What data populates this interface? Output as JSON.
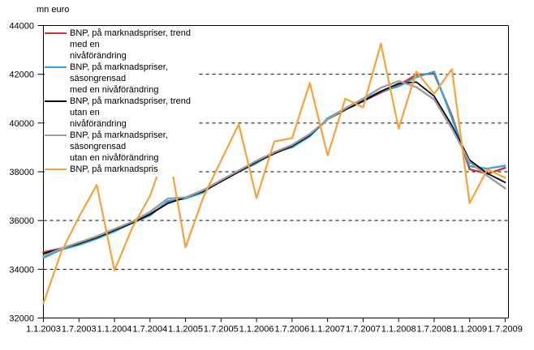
{
  "chart_data": {
    "type": "line",
    "ylabel": "mn euro",
    "ylim": [
      32000,
      44000
    ],
    "y_tick_labels": [
      "44000",
      "42000",
      "40000",
      "38000",
      "36000",
      "34000",
      "32000"
    ],
    "x_tick_labels": [
      "1.1.2003",
      "1.7.2003",
      "1.1.2004",
      "1.7.2004",
      "1.1.2005",
      "1.7.2005",
      "1.1.2006",
      "1.7.2006",
      "1.1.2007",
      "1.7.2007",
      "1.1.2008",
      "1.7.2008",
      "1.1.2009",
      "1.7.2009"
    ],
    "categories": [
      "2003Q1",
      "2003Q2",
      "2003Q3",
      "2003Q4",
      "2004Q1",
      "2004Q2",
      "2004Q3",
      "2004Q4",
      "2005Q1",
      "2005Q2",
      "2005Q3",
      "2005Q4",
      "2006Q1",
      "2006Q2",
      "2006Q3",
      "2006Q4",
      "2007Q1",
      "2007Q2",
      "2007Q3",
      "2007Q4",
      "2008Q1",
      "2008Q2",
      "2008Q3",
      "2008Q4",
      "2009Q1",
      "2009Q2",
      "2009Q3"
    ],
    "grid": "horizontal dashed lines every 2000, solid plot box border",
    "legend_position": "top-left inside plot, white background",
    "series": [
      {
        "name": "BNP, på marknadspriser, trend med en nivåförändring",
        "color": "#cd3333",
        "line_width": 2.4,
        "values": [
          34700,
          34850,
          35050,
          35300,
          35600,
          35900,
          36250,
          36750,
          36950,
          37200,
          37600,
          38000,
          38400,
          38750,
          39050,
          39500,
          40150,
          40550,
          40900,
          41250,
          41550,
          41980,
          42030,
          40300,
          38100,
          37920,
          38160
        ]
      },
      {
        "name": "BNP, på marknadspriser, säsongrensad med en nivåförändring",
        "color": "#2ba6de",
        "line_width": 2.2,
        "values": [
          34470,
          34800,
          35000,
          35250,
          35550,
          35900,
          36200,
          36800,
          36900,
          37150,
          37650,
          38000,
          38350,
          38800,
          39000,
          39450,
          40200,
          40600,
          40950,
          41300,
          41500,
          41880,
          42110,
          40200,
          38230,
          38130,
          38250
        ]
      },
      {
        "name": "BNP, på marknadspriser, trend utan en nivåförändring",
        "color": "#000000",
        "line_width": 1.8,
        "values": [
          34640,
          34850,
          35050,
          35300,
          35600,
          35900,
          36250,
          36700,
          36950,
          37200,
          37600,
          38000,
          38400,
          38750,
          39050,
          39500,
          40150,
          40550,
          40900,
          41300,
          41620,
          41680,
          41100,
          39900,
          38480,
          37930,
          37560
        ]
      },
      {
        "name": "BNP, på marknadspriser, säsongrensad utan en nivåförändring",
        "color": "#9c9c9c",
        "line_width": 2.4,
        "values": [
          34540,
          34850,
          35100,
          35350,
          35650,
          35950,
          36350,
          36900,
          36950,
          37250,
          37650,
          38050,
          38450,
          38800,
          39100,
          39550,
          40150,
          40600,
          41000,
          41450,
          41720,
          41470,
          40970,
          39780,
          38400,
          37830,
          37320
        ]
      },
      {
        "name": "BNP, på marknadspris",
        "color": "#f7a13c",
        "line_width": 2.2,
        "values": [
          32600,
          34700,
          36150,
          37460,
          33950,
          35700,
          37000,
          39080,
          34900,
          36950,
          38450,
          39950,
          36920,
          39240,
          39380,
          41640,
          38670,
          41000,
          40640,
          43260,
          39780,
          42110,
          41200,
          42210,
          36710,
          38100,
          37750
        ]
      }
    ]
  },
  "legend": {
    "items": [
      {
        "label": "BNP, på marknadspriser, trend med en\nnivåförändring"
      },
      {
        "label": "BNP, på marknadspriser, säsongrensad\nmed en nivåförändring"
      },
      {
        "label": "BNP, på marknadspriser, trend utan en\nnivåförändring"
      },
      {
        "label": "BNP, på marknadspriser, säsongrensad\nutan en nivåförändring"
      },
      {
        "label": "BNP, på marknadspris"
      }
    ]
  }
}
